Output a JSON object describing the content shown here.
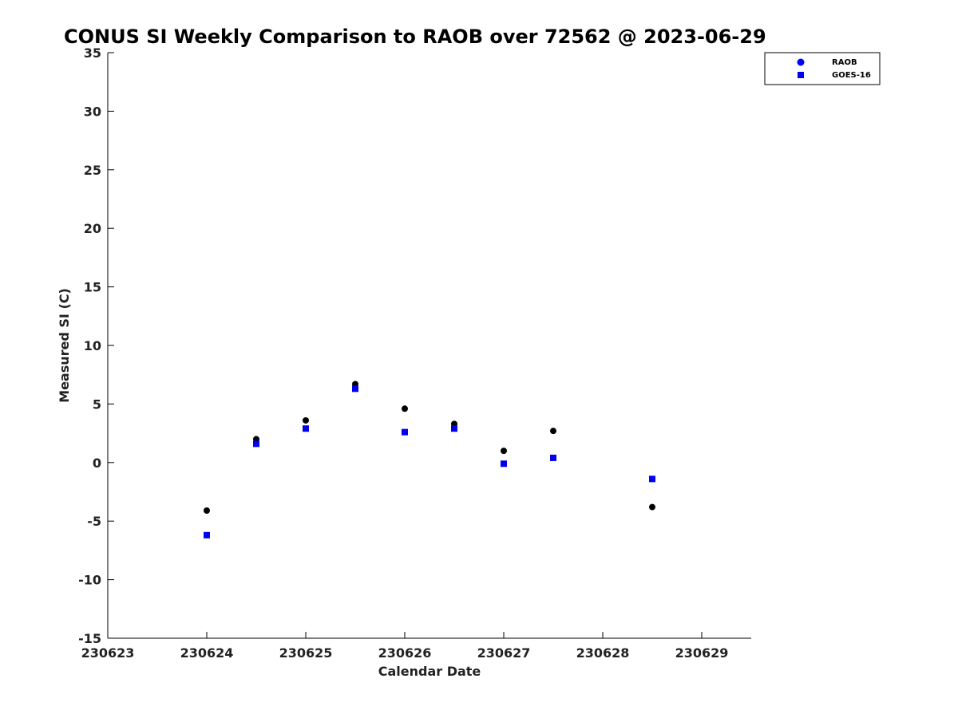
{
  "chart_data": {
    "type": "scatter",
    "title": "CONUS SI Weekly Comparison to RAOB over 72562 @ 2023-06-29",
    "xlabel": "Calendar Date",
    "ylabel": "Measured SI (C)",
    "xlim": [
      0,
      6.5
    ],
    "ylim": [
      -15,
      35
    ],
    "x_ticks": [
      {
        "value": 0,
        "label": "230623"
      },
      {
        "value": 1,
        "label": "230624"
      },
      {
        "value": 2,
        "label": "230625"
      },
      {
        "value": 3,
        "label": "230626"
      },
      {
        "value": 4,
        "label": "230627"
      },
      {
        "value": 5,
        "label": "230628"
      },
      {
        "value": 6,
        "label": "230629"
      }
    ],
    "y_ticks": [
      {
        "value": 35,
        "label": "35"
      },
      {
        "value": 30,
        "label": "30"
      },
      {
        "value": 25,
        "label": "25"
      },
      {
        "value": 20,
        "label": "20"
      },
      {
        "value": 15,
        "label": "15"
      },
      {
        "value": 10,
        "label": "10"
      },
      {
        "value": 5,
        "label": "5"
      },
      {
        "value": 0,
        "label": "0"
      },
      {
        "value": -5,
        "label": "-5"
      },
      {
        "value": -10,
        "label": "-10"
      },
      {
        "value": -15,
        "label": "-15"
      }
    ],
    "grid": false,
    "legend_position": "top-right",
    "series": [
      {
        "name": "RAOB",
        "marker": "circle",
        "color": "#000000",
        "legend_color": "#0000ff",
        "x": [
          1,
          1.5,
          2,
          2.5,
          3,
          3.5,
          4,
          4.5,
          5.5
        ],
        "y": [
          -4.1,
          2.0,
          3.6,
          6.7,
          4.6,
          3.3,
          1.0,
          2.7,
          -3.8
        ]
      },
      {
        "name": "GOES-16",
        "marker": "square",
        "color": "#0000ee",
        "legend_color": "#0000ee",
        "x": [
          1,
          1.5,
          2,
          2.5,
          3,
          3.5,
          4,
          4.5,
          5.5
        ],
        "y": [
          -6.2,
          1.6,
          2.9,
          6.3,
          2.6,
          2.9,
          -0.1,
          0.4,
          -1.4
        ]
      }
    ]
  }
}
